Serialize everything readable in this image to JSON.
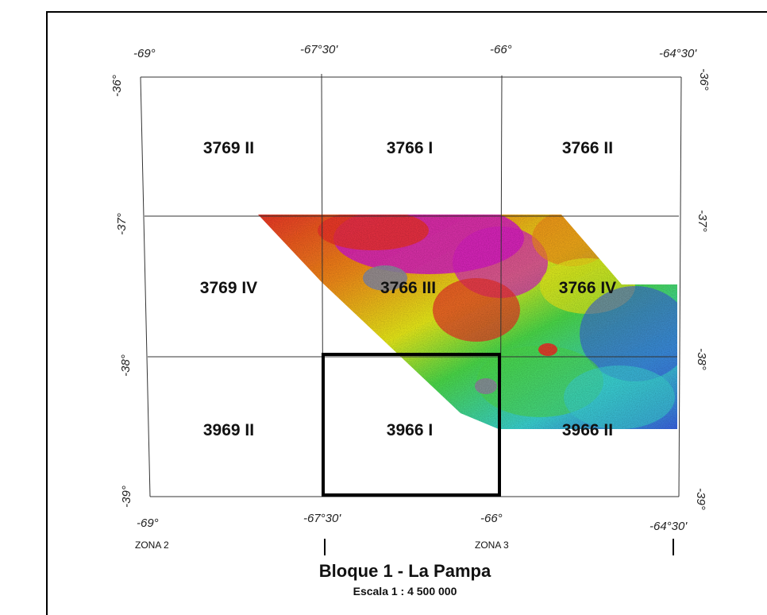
{
  "map": {
    "title": "Bloque 1 - La Pampa",
    "scale": "Escala 1 : 4 500 000",
    "lon_labels_top": [
      "-69°",
      "-67°30'",
      "-66°",
      "-64°30'"
    ],
    "lon_labels_bottom": [
      "-69°",
      "-67°30'",
      "-66°",
      "-64°30'"
    ],
    "lat_labels_left": [
      "-36°",
      "-37°",
      "-38°",
      "-39°"
    ],
    "lat_labels_right": [
      "-36°",
      "-37°",
      "-38°",
      "-39°"
    ],
    "zones": [
      "ZONA 2",
      "ZONA 3"
    ],
    "sheets": [
      {
        "label": "3769 II",
        "row": 0,
        "col": 0
      },
      {
        "label": "3766 I",
        "row": 0,
        "col": 1
      },
      {
        "label": "3766 II",
        "row": 0,
        "col": 2
      },
      {
        "label": "3769 IV",
        "row": 1,
        "col": 0
      },
      {
        "label": "3766 III",
        "row": 1,
        "col": 1
      },
      {
        "label": "3766 IV",
        "row": 1,
        "col": 2
      },
      {
        "label": "3969 II",
        "row": 2,
        "col": 0
      },
      {
        "label": "3966 I",
        "row": 2,
        "col": 1
      },
      {
        "label": "3966 II",
        "row": 2,
        "col": 2
      }
    ],
    "highlighted_sheet": "3966 I",
    "colors": {
      "magenta": "#d41fbf",
      "red": "#e8322a",
      "orange": "#f08a1c",
      "yellow": "#e6e81e",
      "green": "#4cd84a",
      "cyan": "#3ad0d0",
      "blue": "#3a5ae0",
      "grey": "#8a8a9a"
    }
  }
}
